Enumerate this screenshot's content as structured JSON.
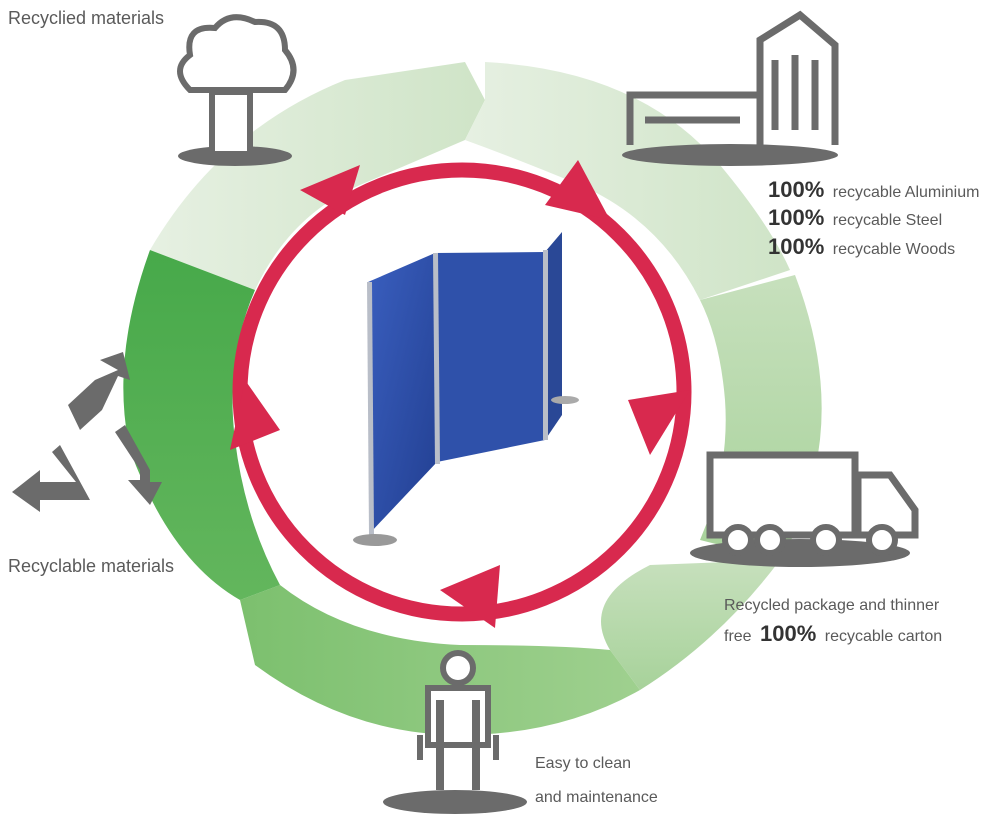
{
  "labels": {
    "recycled_materials": "Recyclied materials",
    "recyclable_materials": "Recyclable materials",
    "materials_lines": [
      {
        "pct": "100%",
        "text": "recycable Aluminium"
      },
      {
        "pct": "100%",
        "text": "recycable Steel"
      },
      {
        "pct": "100%",
        "text": "recycable Woods"
      }
    ],
    "package_line1": "Recycled package and thinner",
    "package_line2_pre": "free",
    "package_line2_pct": "100%",
    "package_line2_post": "recycable carton",
    "clean_line1": "Easy to clean",
    "clean_line2": "and maintenance"
  },
  "icons": [
    "tree-icon",
    "factory-icon",
    "truck-icon",
    "person-in-chair-icon",
    "recycle-icon",
    "display-panel-image"
  ],
  "colors": {
    "ring_light": "#dcebd7",
    "ring_mid": "#9fcf8f",
    "ring_dark": "#4fae4f",
    "cycle_arrow": "#d8294e",
    "panel_blue": "#2b4fa8",
    "icon_gray": "#6b6b6b"
  }
}
